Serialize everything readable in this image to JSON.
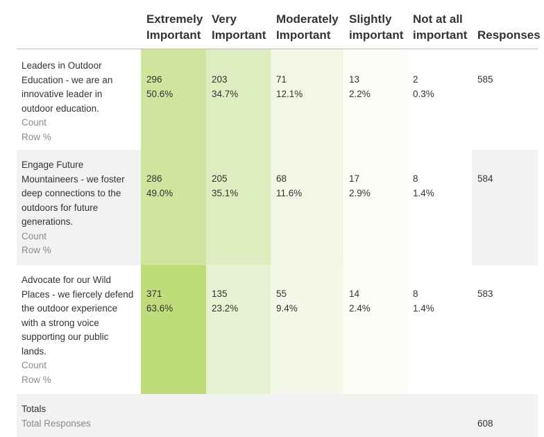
{
  "columns": [
    {
      "line1": "Extremely",
      "line2": "Important"
    },
    {
      "line1": "Very",
      "line2": "Important"
    },
    {
      "line1": "Moderately",
      "line2": "Important"
    },
    {
      "line1": "Slightly",
      "line2": "important"
    },
    {
      "line1": "Not at all",
      "line2": "important"
    },
    {
      "line1": "",
      "line2": "Responses"
    }
  ],
  "rows": [
    {
      "label": "Leaders in Outdoor Education - we are an innovative leader in outdoor education.",
      "count_label": "Count",
      "pct_label": "Row %",
      "cells": [
        {
          "count": "296",
          "pct": "50.6%",
          "color": "#cde59d"
        },
        {
          "count": "203",
          "pct": "34.7%",
          "color": "#ddedbf"
        },
        {
          "count": "71",
          "pct": "12.1%",
          "color": "#f1f7e4"
        },
        {
          "count": "13",
          "pct": "2.2%",
          "color": "#fafcf6"
        },
        {
          "count": "2",
          "pct": "0.3%",
          "color": "#ffffff"
        }
      ],
      "responses": "585"
    },
    {
      "label": "Engage Future Mountaineers - we foster deep connections to the outdoors for future generations.",
      "count_label": "Count",
      "pct_label": "Row %",
      "cells": [
        {
          "count": "286",
          "pct": "49.0%",
          "color": "#cde59d"
        },
        {
          "count": "205",
          "pct": "35.1%",
          "color": "#ddedbf"
        },
        {
          "count": "68",
          "pct": "11.6%",
          "color": "#f1f7e4"
        },
        {
          "count": "17",
          "pct": "2.9%",
          "color": "#fafcf6"
        },
        {
          "count": "8",
          "pct": "1.4%",
          "color": "#ffffff"
        }
      ],
      "responses": "584"
    },
    {
      "label": "Advocate for our Wild Places - we fiercely defend the outdoor experience with a strong voice supporting our public lands.",
      "count_label": "Count",
      "pct_label": "Row %",
      "cells": [
        {
          "count": "371",
          "pct": "63.6%",
          "color": "#bedc7a"
        },
        {
          "count": "135",
          "pct": "23.2%",
          "color": "#e7f2d3"
        },
        {
          "count": "55",
          "pct": "9.4%",
          "color": "#f3f8e8"
        },
        {
          "count": "14",
          "pct": "2.4%",
          "color": "#fafcf6"
        },
        {
          "count": "8",
          "pct": "1.4%",
          "color": "#ffffff"
        }
      ],
      "responses": "583"
    }
  ],
  "totals": {
    "label": "Totals",
    "sub_label": "Total Responses",
    "responses": "608"
  }
}
